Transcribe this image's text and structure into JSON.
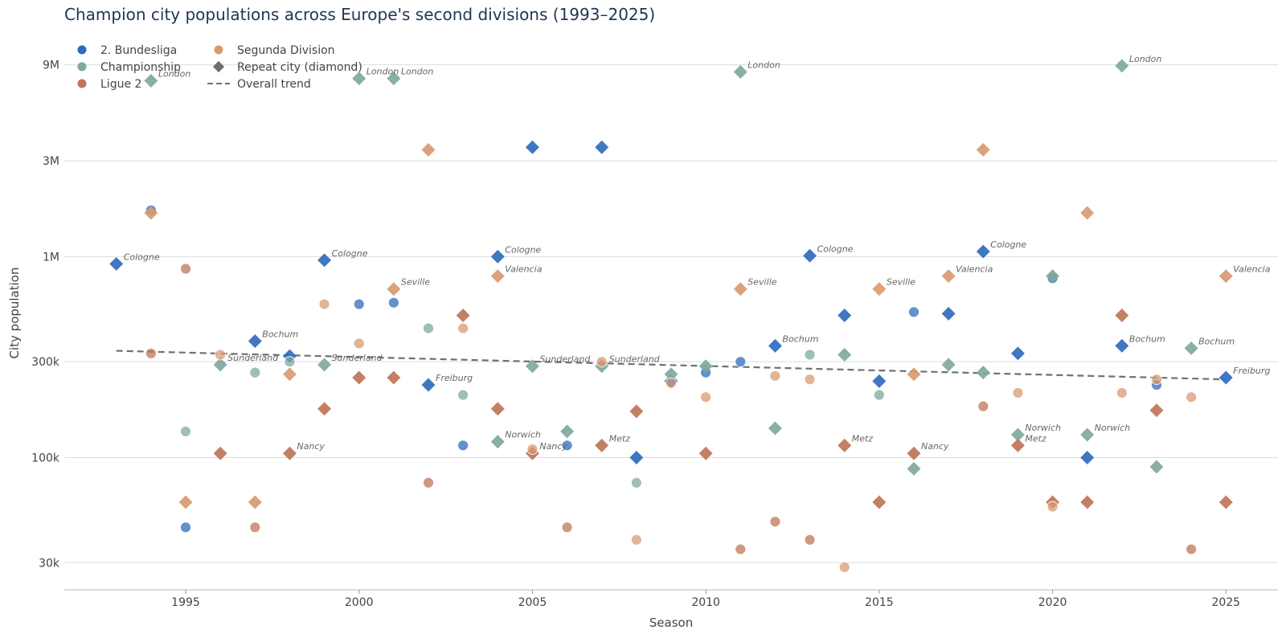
{
  "chart_data": {
    "type": "scatter",
    "title": "Champion city populations across Europe's second divisions (1993–2025)",
    "xlabel": "Season",
    "ylabel": "City population",
    "y_scale": "log",
    "xlim": [
      1991.5,
      2026.5
    ],
    "ylim": [
      22000,
      12500000
    ],
    "x_ticks": [
      1995,
      2000,
      2005,
      2010,
      2015,
      2020,
      2025
    ],
    "y_ticks": [
      {
        "value": 30000,
        "label": "30k"
      },
      {
        "value": 100000,
        "label": "100k"
      },
      {
        "value": 300000,
        "label": "300k"
      },
      {
        "value": 1000000,
        "label": "1M"
      },
      {
        "value": 3000000,
        "label": "3M"
      },
      {
        "value": 9000000,
        "label": "9M"
      }
    ],
    "grid": "horizontal",
    "legend_placement": "top-left",
    "legend": {
      "series": [
        "2. Bundesliga",
        "Championship",
        "Ligue 2",
        "Segunda Division"
      ],
      "repeat_label": "Repeat city (diamond)",
      "trend_label": "Overall trend"
    },
    "trend": {
      "x": [
        1993,
        2025
      ],
      "y": [
        340000,
        245000
      ]
    },
    "series": [
      {
        "name": "2. Bundesliga",
        "color": "#2f6bbd",
        "points": [
          {
            "x": 1993,
            "y": 920000,
            "repeat": true,
            "label": "Cologne"
          },
          {
            "x": 1994,
            "y": 1700000,
            "repeat": false
          },
          {
            "x": 1995,
            "y": 45000,
            "repeat": false
          },
          {
            "x": 1997,
            "y": 380000,
            "repeat": true,
            "label": "Bochum"
          },
          {
            "x": 1998,
            "y": 320000,
            "repeat": true
          },
          {
            "x": 1999,
            "y": 960000,
            "repeat": true,
            "label": "Cologne"
          },
          {
            "x": 2000,
            "y": 580000,
            "repeat": false
          },
          {
            "x": 2001,
            "y": 590000,
            "repeat": false
          },
          {
            "x": 2002,
            "y": 230000,
            "repeat": true,
            "label": "Freiburg"
          },
          {
            "x": 2003,
            "y": 115000,
            "repeat": false
          },
          {
            "x": 2004,
            "y": 1000000,
            "repeat": true,
            "label": "Cologne"
          },
          {
            "x": 2005,
            "y": 3500000,
            "repeat": true
          },
          {
            "x": 2006,
            "y": 115000,
            "repeat": false
          },
          {
            "x": 2007,
            "y": 3500000,
            "repeat": true
          },
          {
            "x": 2008,
            "y": 100000,
            "repeat": true
          },
          {
            "x": 2009,
            "y": 240000,
            "repeat": true
          },
          {
            "x": 2010,
            "y": 265000,
            "repeat": false
          },
          {
            "x": 2011,
            "y": 300000,
            "repeat": false
          },
          {
            "x": 2012,
            "y": 360000,
            "repeat": true,
            "label": "Bochum"
          },
          {
            "x": 2013,
            "y": 1010000,
            "repeat": true,
            "label": "Cologne"
          },
          {
            "x": 2014,
            "y": 510000,
            "repeat": true
          },
          {
            "x": 2015,
            "y": 240000,
            "repeat": true
          },
          {
            "x": 2016,
            "y": 530000,
            "repeat": false
          },
          {
            "x": 2017,
            "y": 520000,
            "repeat": true
          },
          {
            "x": 2018,
            "y": 1060000,
            "repeat": true,
            "label": "Cologne"
          },
          {
            "x": 2019,
            "y": 330000,
            "repeat": true
          },
          {
            "x": 2020,
            "y": 780000,
            "repeat": false
          },
          {
            "x": 2021,
            "y": 100000,
            "repeat": true
          },
          {
            "x": 2022,
            "y": 360000,
            "repeat": true,
            "label": "Bochum"
          },
          {
            "x": 2023,
            "y": 230000,
            "repeat": false
          },
          {
            "x": 2025,
            "y": 250000,
            "repeat": true,
            "label": "Freiburg"
          }
        ]
      },
      {
        "name": "Championship",
        "color": "#7fa8a0",
        "points": [
          {
            "x": 1994,
            "y": 7500000,
            "repeat": true,
            "label": "London"
          },
          {
            "x": 1995,
            "y": 135000,
            "repeat": false
          },
          {
            "x": 1996,
            "y": 290000,
            "repeat": true,
            "label": "Sunderland"
          },
          {
            "x": 1997,
            "y": 265000,
            "repeat": false
          },
          {
            "x": 1998,
            "y": 300000,
            "repeat": false
          },
          {
            "x": 1999,
            "y": 290000,
            "repeat": true,
            "label": "Sunderland"
          },
          {
            "x": 2000,
            "y": 7700000,
            "repeat": true,
            "label": "London"
          },
          {
            "x": 2001,
            "y": 7700000,
            "repeat": true,
            "label": "London"
          },
          {
            "x": 2002,
            "y": 440000,
            "repeat": false
          },
          {
            "x": 2003,
            "y": 205000,
            "repeat": false
          },
          {
            "x": 2004,
            "y": 120000,
            "repeat": true,
            "label": "Norwich"
          },
          {
            "x": 2005,
            "y": 285000,
            "repeat": true,
            "label": "Sunderland"
          },
          {
            "x": 2006,
            "y": 135000,
            "repeat": true
          },
          {
            "x": 2007,
            "y": 285000,
            "repeat": true,
            "label": "Sunderland"
          },
          {
            "x": 2008,
            "y": 75000,
            "repeat": false
          },
          {
            "x": 2009,
            "y": 260000,
            "repeat": true
          },
          {
            "x": 2010,
            "y": 285000,
            "repeat": true
          },
          {
            "x": 2011,
            "y": 8300000,
            "repeat": true,
            "label": "London"
          },
          {
            "x": 2012,
            "y": 140000,
            "repeat": true
          },
          {
            "x": 2013,
            "y": 325000,
            "repeat": false
          },
          {
            "x": 2014,
            "y": 325000,
            "repeat": true
          },
          {
            "x": 2015,
            "y": 205000,
            "repeat": false
          },
          {
            "x": 2016,
            "y": 88000,
            "repeat": true
          },
          {
            "x": 2017,
            "y": 290000,
            "repeat": true
          },
          {
            "x": 2018,
            "y": 265000,
            "repeat": true
          },
          {
            "x": 2019,
            "y": 130000,
            "repeat": true,
            "label": "Norwich"
          },
          {
            "x": 2020,
            "y": 800000,
            "repeat": true
          },
          {
            "x": 2021,
            "y": 130000,
            "repeat": true,
            "label": "Norwich"
          },
          {
            "x": 2022,
            "y": 8900000,
            "repeat": true,
            "label": "London"
          },
          {
            "x": 2023,
            "y": 90000,
            "repeat": true
          },
          {
            "x": 2024,
            "y": 350000,
            "repeat": true,
            "label": "Bochum"
          }
        ]
      },
      {
        "name": "Ligue 2",
        "color": "#bf7557",
        "points": [
          {
            "x": 1994,
            "y": 330000,
            "repeat": false
          },
          {
            "x": 1995,
            "y": 870000,
            "repeat": false
          },
          {
            "x": 1996,
            "y": 105000,
            "repeat": true
          },
          {
            "x": 1997,
            "y": 45000,
            "repeat": false
          },
          {
            "x": 1998,
            "y": 105000,
            "repeat": true,
            "label": "Nancy"
          },
          {
            "x": 1999,
            "y": 175000,
            "repeat": true
          },
          {
            "x": 2000,
            "y": 250000,
            "repeat": true
          },
          {
            "x": 2001,
            "y": 250000,
            "repeat": true
          },
          {
            "x": 2002,
            "y": 75000,
            "repeat": false
          },
          {
            "x": 2003,
            "y": 510000,
            "repeat": true
          },
          {
            "x": 2004,
            "y": 175000,
            "repeat": true
          },
          {
            "x": 2005,
            "y": 105000,
            "repeat": true,
            "label": "Nancy"
          },
          {
            "x": 2006,
            "y": 45000,
            "repeat": false
          },
          {
            "x": 2007,
            "y": 115000,
            "repeat": true,
            "label": "Metz"
          },
          {
            "x": 2008,
            "y": 170000,
            "repeat": true
          },
          {
            "x": 2010,
            "y": 105000,
            "repeat": true
          },
          {
            "x": 2011,
            "y": 35000,
            "repeat": false
          },
          {
            "x": 2012,
            "y": 48000,
            "repeat": false
          },
          {
            "x": 2013,
            "y": 39000,
            "repeat": false
          },
          {
            "x": 2014,
            "y": 115000,
            "repeat": true,
            "label": "Metz"
          },
          {
            "x": 2015,
            "y": 60000,
            "repeat": true
          },
          {
            "x": 2016,
            "y": 105000,
            "repeat": true,
            "label": "Nancy"
          },
          {
            "x": 2018,
            "y": 180000,
            "repeat": false
          },
          {
            "x": 2019,
            "y": 115000,
            "repeat": true,
            "label": "Metz"
          },
          {
            "x": 2020,
            "y": 60000,
            "repeat": true
          },
          {
            "x": 2021,
            "y": 60000,
            "repeat": true
          },
          {
            "x": 2022,
            "y": 510000,
            "repeat": true
          },
          {
            "x": 2023,
            "y": 172000,
            "repeat": true
          },
          {
            "x": 2024,
            "y": 35000,
            "repeat": false
          },
          {
            "x": 2025,
            "y": 60000,
            "repeat": true
          }
        ]
      },
      {
        "name": "Segunda Division",
        "color": "#d99a72",
        "points": [
          {
            "x": 1994,
            "y": 1650000,
            "repeat": true
          },
          {
            "x": 1995,
            "y": 60000,
            "repeat": true
          },
          {
            "x": 1996,
            "y": 325000,
            "repeat": false
          },
          {
            "x": 1997,
            "y": 60000,
            "repeat": true
          },
          {
            "x": 1998,
            "y": 260000,
            "repeat": true
          },
          {
            "x": 1999,
            "y": 580000,
            "repeat": false
          },
          {
            "x": 2000,
            "y": 370000,
            "repeat": false
          },
          {
            "x": 2001,
            "y": 690000,
            "repeat": true,
            "label": "Seville"
          },
          {
            "x": 2002,
            "y": 3400000,
            "repeat": true
          },
          {
            "x": 2003,
            "y": 440000,
            "repeat": false
          },
          {
            "x": 2004,
            "y": 800000,
            "repeat": true,
            "label": "Valencia"
          },
          {
            "x": 2005,
            "y": 110000,
            "repeat": false
          },
          {
            "x": 2007,
            "y": 300000,
            "repeat": false
          },
          {
            "x": 2008,
            "y": 39000,
            "repeat": false
          },
          {
            "x": 2009,
            "y": 235000,
            "repeat": false
          },
          {
            "x": 2010,
            "y": 200000,
            "repeat": false
          },
          {
            "x": 2011,
            "y": 690000,
            "repeat": true,
            "label": "Seville"
          },
          {
            "x": 2012,
            "y": 255000,
            "repeat": false
          },
          {
            "x": 2013,
            "y": 245000,
            "repeat": false
          },
          {
            "x": 2014,
            "y": 28500,
            "repeat": false
          },
          {
            "x": 2015,
            "y": 690000,
            "repeat": true,
            "label": "Seville"
          },
          {
            "x": 2016,
            "y": 260000,
            "repeat": true
          },
          {
            "x": 2017,
            "y": 800000,
            "repeat": true,
            "label": "Valencia"
          },
          {
            "x": 2018,
            "y": 3400000,
            "repeat": true
          },
          {
            "x": 2019,
            "y": 210000,
            "repeat": false
          },
          {
            "x": 2020,
            "y": 57000,
            "repeat": false
          },
          {
            "x": 2021,
            "y": 1650000,
            "repeat": true
          },
          {
            "x": 2022,
            "y": 210000,
            "repeat": false
          },
          {
            "x": 2023,
            "y": 245000,
            "repeat": false
          },
          {
            "x": 2024,
            "y": 200000,
            "repeat": false
          },
          {
            "x": 2025,
            "y": 800000,
            "repeat": true,
            "label": "Valencia"
          }
        ]
      }
    ]
  }
}
